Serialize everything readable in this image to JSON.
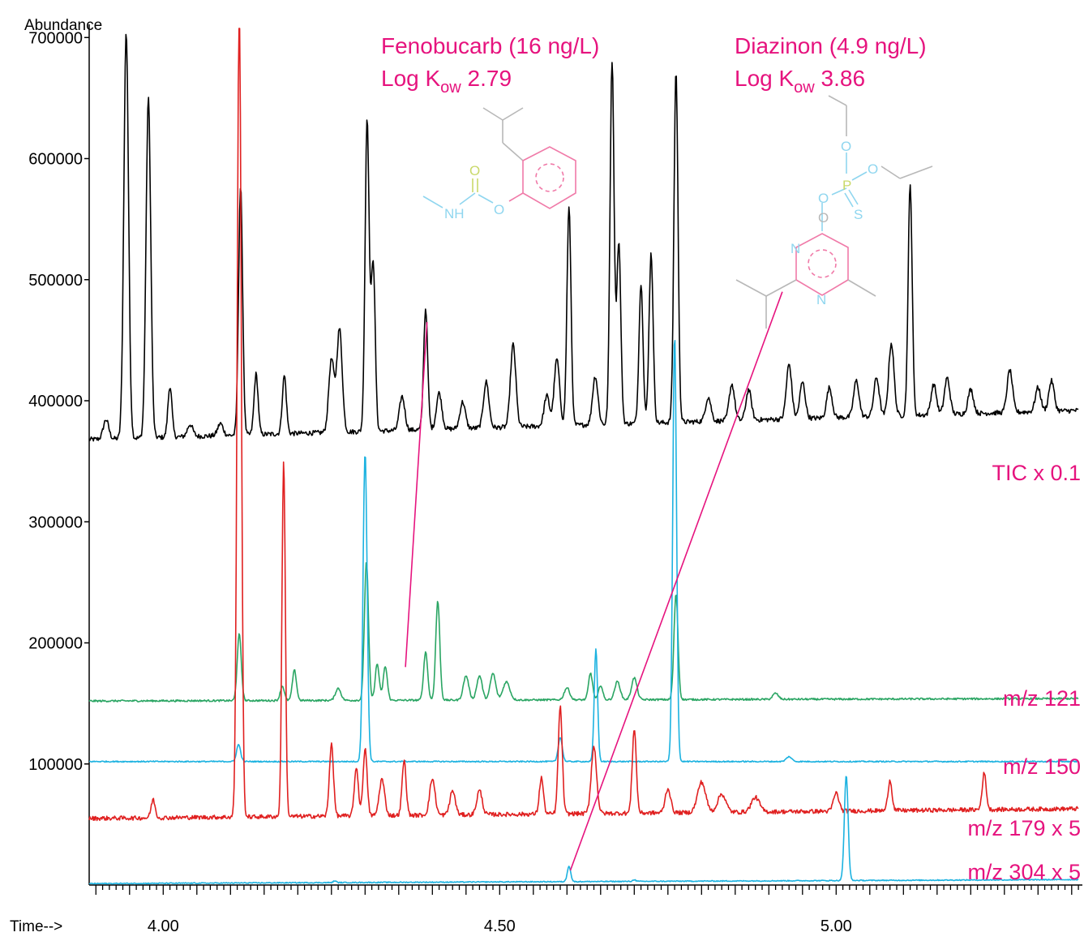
{
  "chart_data": {
    "type": "line",
    "ylabel": "Abundance",
    "xlabel": "Time-->",
    "xlim": [
      3.89,
      5.36
    ],
    "ylim": [
      0,
      730000
    ],
    "y_ticks": [
      100000,
      200000,
      300000,
      400000,
      500000,
      600000,
      700000
    ],
    "y_tick_labels": [
      "100000",
      "200000",
      "300000",
      "400000",
      "500000",
      "600000",
      "700000"
    ],
    "x_ticks": [
      4.0,
      4.5,
      5.0
    ],
    "x_tick_labels": [
      "4.00",
      "4.50",
      "5.00"
    ],
    "x_minor_step": 0.05,
    "grid": false,
    "colors": {
      "tic": "#000000",
      "mz121": "#2aa563",
      "mz150": "#1cb2e0",
      "mz179": "#e02020",
      "mz304": "#1cb2e0",
      "annotation": "#e6137e",
      "structure_gray": "#b8b8b8",
      "structure_pink": "#f07aa8",
      "structure_cyan": "#8fd6ef",
      "structure_olive": "#c9d96a"
    },
    "series": [
      {
        "name": "TIC x 0.1",
        "color": "#000000",
        "baseline_start": 368000,
        "baseline_end": 392000,
        "noise": 4000,
        "peaks": [
          [
            3.915,
            16000,
            0.004
          ],
          [
            3.945,
            335000,
            0.0035
          ],
          [
            3.978,
            280000,
            0.0035
          ],
          [
            4.01,
            42000,
            0.003
          ],
          [
            4.04,
            10000,
            0.004
          ],
          [
            4.085,
            10000,
            0.004
          ],
          [
            4.115,
            205000,
            0.003
          ],
          [
            4.138,
            50000,
            0.003
          ],
          [
            4.18,
            48000,
            0.003
          ],
          [
            4.25,
            60000,
            0.004
          ],
          [
            4.262,
            85000,
            0.004
          ],
          [
            4.303,
            258000,
            0.003
          ],
          [
            4.312,
            140000,
            0.003
          ],
          [
            4.355,
            28000,
            0.004
          ],
          [
            4.39,
            100000,
            0.003
          ],
          [
            4.41,
            30000,
            0.004
          ],
          [
            4.445,
            22000,
            0.004
          ],
          [
            4.48,
            38000,
            0.004
          ],
          [
            4.52,
            68000,
            0.004
          ],
          [
            4.57,
            25000,
            0.004
          ],
          [
            4.585,
            55000,
            0.004
          ],
          [
            4.603,
            180000,
            0.003
          ],
          [
            4.642,
            40000,
            0.004
          ],
          [
            4.667,
            300000,
            0.003
          ],
          [
            4.677,
            150000,
            0.003
          ],
          [
            4.71,
            115000,
            0.003
          ],
          [
            4.725,
            140000,
            0.003
          ],
          [
            4.762,
            290000,
            0.003
          ],
          [
            4.81,
            20000,
            0.004
          ],
          [
            4.845,
            30000,
            0.004
          ],
          [
            4.87,
            25000,
            0.004
          ],
          [
            4.93,
            45000,
            0.004
          ],
          [
            4.95,
            30000,
            0.004
          ],
          [
            4.99,
            25000,
            0.004
          ],
          [
            5.03,
            30000,
            0.004
          ],
          [
            5.06,
            32000,
            0.004
          ],
          [
            5.082,
            60000,
            0.004
          ],
          [
            5.11,
            190000,
            0.003
          ],
          [
            5.145,
            25000,
            0.004
          ],
          [
            5.165,
            30000,
            0.004
          ],
          [
            5.2,
            20000,
            0.004
          ],
          [
            5.258,
            35000,
            0.004
          ],
          [
            5.3,
            20000,
            0.004
          ],
          [
            5.32,
            25000,
            0.004
          ]
        ]
      },
      {
        "name": "m/z 121",
        "color": "#2aa563",
        "baseline_start": 152000,
        "baseline_end": 154000,
        "noise": 1500,
        "peaks": [
          [
            4.113,
            55000,
            0.003
          ],
          [
            4.177,
            12000,
            0.003
          ],
          [
            4.195,
            25000,
            0.003
          ],
          [
            4.26,
            10000,
            0.004
          ],
          [
            4.302,
            115000,
            0.003
          ],
          [
            4.318,
            30000,
            0.003
          ],
          [
            4.33,
            28000,
            0.003
          ],
          [
            4.39,
            40000,
            0.003
          ],
          [
            4.408,
            82000,
            0.003
          ],
          [
            4.45,
            20000,
            0.004
          ],
          [
            4.47,
            20000,
            0.004
          ],
          [
            4.49,
            22000,
            0.004
          ],
          [
            4.51,
            15000,
            0.005
          ],
          [
            4.6,
            10000,
            0.004
          ],
          [
            4.635,
            22000,
            0.003
          ],
          [
            4.65,
            12000,
            0.003
          ],
          [
            4.675,
            15000,
            0.004
          ],
          [
            4.7,
            18000,
            0.004
          ],
          [
            4.762,
            87000,
            0.003
          ],
          [
            4.91,
            5000,
            0.004
          ]
        ]
      },
      {
        "name": "m/z 150",
        "color": "#1cb2e0",
        "baseline_start": 102000,
        "baseline_end": 102000,
        "noise": 1000,
        "peaks": [
          [
            4.112,
            14000,
            0.003
          ],
          [
            4.3,
            255000,
            0.003
          ],
          [
            4.59,
            20000,
            0.003
          ],
          [
            4.643,
            93000,
            0.0025
          ],
          [
            4.76,
            352000,
            0.0028
          ],
          [
            4.93,
            4000,
            0.004
          ]
        ]
      },
      {
        "name": "m/z 179 x 5",
        "color": "#e02020",
        "baseline_start": 55000,
        "baseline_end": 63000,
        "noise": 3500,
        "peaks": [
          [
            3.985,
            15000,
            0.003
          ],
          [
            4.113,
            680000,
            0.003
          ],
          [
            4.179,
            295000,
            0.0025
          ],
          [
            4.25,
            60000,
            0.003
          ],
          [
            4.287,
            40000,
            0.003
          ],
          [
            4.3,
            55000,
            0.003
          ],
          [
            4.325,
            30000,
            0.004
          ],
          [
            4.358,
            45000,
            0.003
          ],
          [
            4.4,
            30000,
            0.004
          ],
          [
            4.43,
            20000,
            0.004
          ],
          [
            4.47,
            20000,
            0.004
          ],
          [
            4.562,
            30000,
            0.003
          ],
          [
            4.59,
            88000,
            0.003
          ],
          [
            4.64,
            55000,
            0.004
          ],
          [
            4.7,
            70000,
            0.003
          ],
          [
            4.75,
            20000,
            0.004
          ],
          [
            4.8,
            25000,
            0.006
          ],
          [
            4.83,
            15000,
            0.006
          ],
          [
            4.88,
            12000,
            0.006
          ],
          [
            5.0,
            15000,
            0.004
          ],
          [
            5.08,
            25000,
            0.003
          ],
          [
            5.22,
            30000,
            0.003
          ]
        ]
      },
      {
        "name": "m/z 304 x 5",
        "color": "#1cb2e0",
        "baseline_start": 1200,
        "baseline_end": 4500,
        "noise": 800,
        "peaks": [
          [
            4.255,
            1500,
            0.002
          ],
          [
            4.603,
            13000,
            0.0025
          ],
          [
            4.7,
            1500,
            0.002
          ],
          [
            5.015,
            87000,
            0.0028
          ]
        ]
      }
    ],
    "annotations": [
      {
        "name": "Fenobucarb (16 ng/L)",
        "line1": "Fenobucarb (16 ng/L)",
        "line2_prefix": "Log K",
        "line2_sub": "ow",
        "line2_value": " 2.79",
        "pointer_from": [
          4.36,
          180000
        ],
        "pointer_to": [
          4.392,
          465000
        ]
      },
      {
        "name": "Diazinon (4.9 ng/L)",
        "line1": "Diazinon (4.9 ng/L)",
        "line2_prefix": "Log K",
        "line2_sub": "ow",
        "line2_value": " 3.86",
        "pointer_from": [
          4.605,
          12000
        ],
        "pointer_to": [
          4.92,
          490000
        ]
      }
    ],
    "structures": [
      {
        "name": "fenobucarb-structure",
        "atoms": [
          {
            "t": "O",
            "c": "olive"
          },
          {
            "t": "NH",
            "c": "cyan"
          },
          {
            "t": "O",
            "c": "cyan"
          }
        ]
      },
      {
        "name": "diazinon-structure",
        "atoms": [
          {
            "t": "O",
            "c": "cyan"
          },
          {
            "t": "P",
            "c": "olive"
          },
          {
            "t": "O",
            "c": "cyan"
          },
          {
            "t": "O",
            "c": "cyan"
          },
          {
            "t": "S",
            "c": "cyan"
          },
          {
            "t": "O",
            "c": "gray"
          },
          {
            "t": "N",
            "c": "cyan"
          },
          {
            "t": "N",
            "c": "cyan"
          }
        ]
      }
    ]
  }
}
